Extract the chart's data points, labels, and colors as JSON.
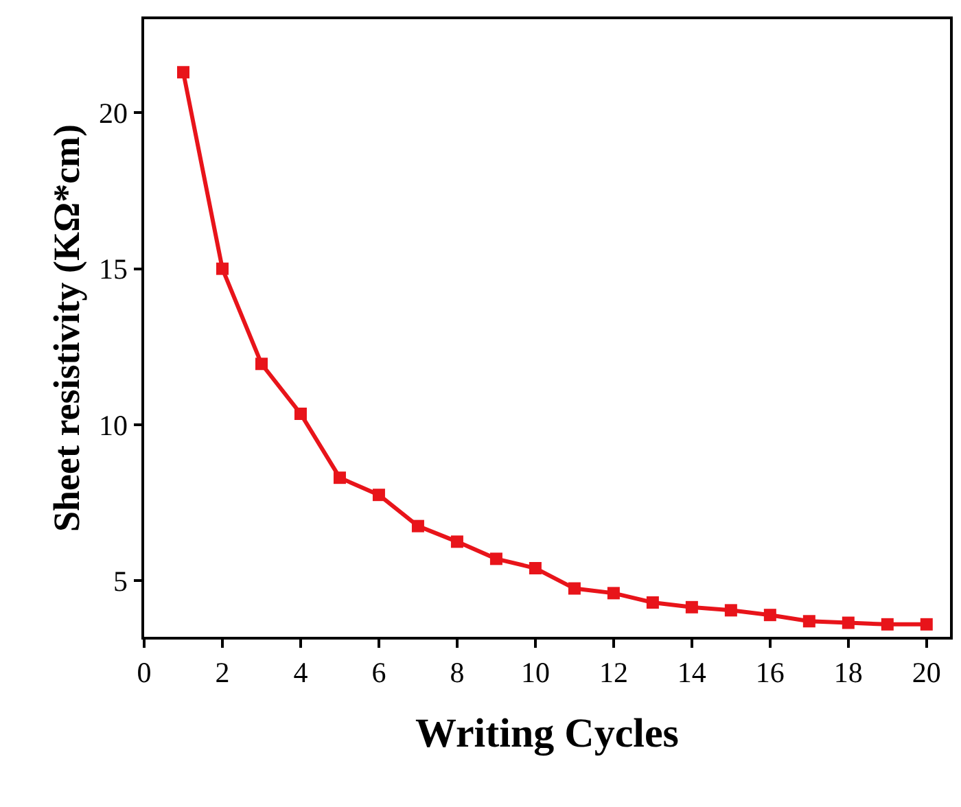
{
  "chart_data": {
    "type": "line",
    "xlabel": "Writing Cycles",
    "ylabel": "Sheet resistivity (KΩ*cm)",
    "x": [
      1,
      2,
      3,
      4,
      5,
      6,
      7,
      8,
      9,
      10,
      11,
      12,
      13,
      14,
      15,
      16,
      17,
      18,
      19,
      20
    ],
    "series": [
      {
        "color": "#e8141a",
        "values": [
          21.3,
          15.0,
          11.95,
          10.35,
          8.3,
          7.75,
          6.75,
          6.25,
          5.7,
          5.4,
          4.75,
          4.6,
          4.3,
          4.15,
          4.05,
          3.9,
          3.7,
          3.65,
          3.6,
          3.6
        ]
      }
    ],
    "marker": "square",
    "line_style": "solid",
    "legend": false,
    "xlim": [
      0,
      20.6
    ],
    "xticks": [
      0,
      2,
      4,
      6,
      8,
      10,
      12,
      14,
      16,
      18,
      20
    ],
    "ylim": [
      3.2,
      23.0
    ],
    "yticks": [
      5,
      10,
      15,
      20
    ]
  }
}
